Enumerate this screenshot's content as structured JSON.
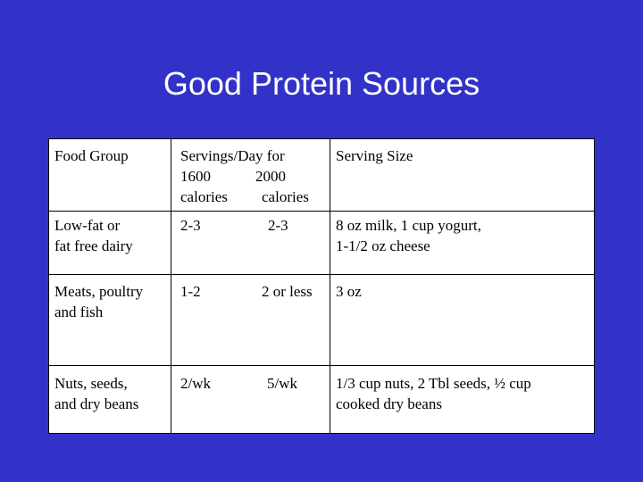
{
  "title": "Good Protein Sources",
  "table": {
    "headers": {
      "food_group": "Food Group",
      "servings_line1": "Servings/Day for",
      "servings_1600": "1600",
      "servings_2000": "2000",
      "calories_1600": "calories",
      "calories_2000": "calories",
      "serving_size": "Serving Size"
    },
    "rows": [
      {
        "food_group_line1": "Low-fat or",
        "food_group_line2": "fat free dairy",
        "servings_1600": "2-3",
        "servings_2000": "2-3",
        "size_line1": "8 oz milk, 1 cup yogurt,",
        "size_line2": "1-1/2 oz cheese"
      },
      {
        "food_group_line1": "Meats, poultry",
        "food_group_line2": "and fish",
        "servings_1600": "1-2",
        "servings_2000": "2 or less",
        "size_line1": "3 oz",
        "size_line2": ""
      },
      {
        "food_group_line1": "Nuts, seeds,",
        "food_group_line2": "and dry beans",
        "servings_1600": "2/wk",
        "servings_2000": "5/wk",
        "size_line1": "1/3 cup nuts, 2 Tbl seeds, ½ cup",
        "size_line2": "cooked dry beans"
      }
    ]
  }
}
